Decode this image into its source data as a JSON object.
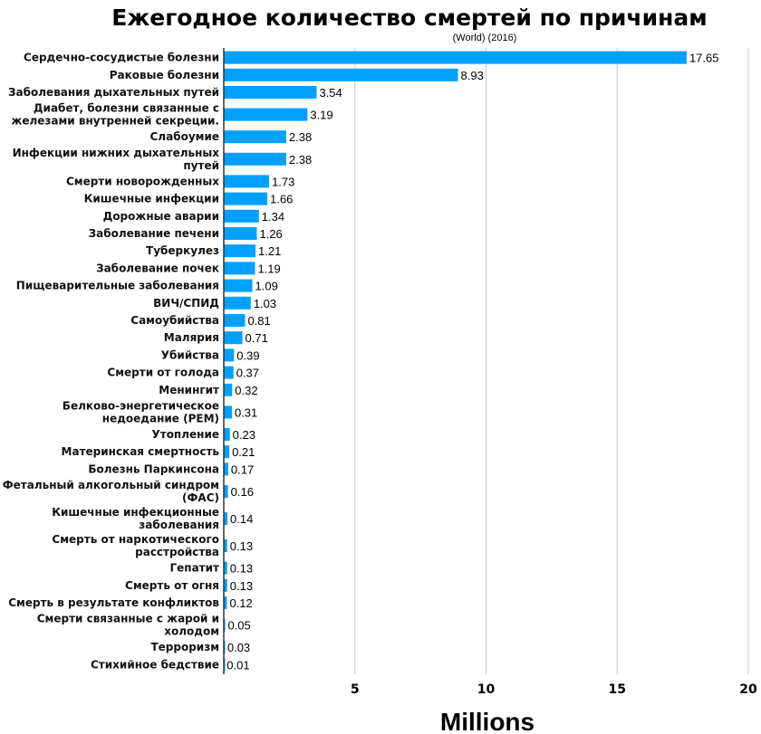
{
  "chart_data": {
    "type": "bar",
    "orientation": "horizontal",
    "title": "Ежегодное количество смертей по причинам",
    "subtitle": "(World) (2016)",
    "xlabel": "Millions",
    "ylabel": "",
    "xlim": [
      0,
      20
    ],
    "xticks": [
      5,
      10,
      15,
      20
    ],
    "grid": true,
    "bar_color": "#00a0ff",
    "categories": [
      "Сердечно-сосудистые болезни",
      "Раковые болезни",
      "Заболевания дыхательных путей",
      "Диабет, болезни связанные с\nжелезами внутренней секреции.",
      "Слабоумие",
      "Инфекции нижних дыхательных\nпутей",
      "Смерти новорожденных",
      "Кишечные инфекции",
      "Дорожные аварии",
      "Заболевание печени",
      "Туберкулез",
      "Заболевание почек",
      "Пищеварительные заболевания",
      "ВИЧ/СПИД",
      "Самоубийства",
      "Малярия",
      "Убийства",
      "Смерти от голода",
      "Менингит",
      "Белково-энергетическое\nнедоедание (PEM)",
      "Утопление",
      "Материнская смертность",
      "Болезнь Паркинсона",
      "Фетальный алкогольный синдром\n(ФАС)",
      "Кишечные инфекционные\nзаболевания",
      "Смерть от наркотического\nрасстройства",
      "Гепатит",
      "Смерть от огня",
      "Смерть в результате конфликтов",
      "Смерти связанные с жарой и\nхолодом",
      "Терроризм",
      "Стихийное бедствие"
    ],
    "values": [
      17.65,
      8.93,
      3.54,
      3.19,
      2.38,
      2.38,
      1.73,
      1.66,
      1.34,
      1.26,
      1.21,
      1.19,
      1.09,
      1.03,
      0.81,
      0.71,
      0.39,
      0.37,
      0.32,
      0.31,
      0.23,
      0.21,
      0.17,
      0.16,
      0.14,
      0.13,
      0.13,
      0.13,
      0.12,
      0.05,
      0.03,
      0.01
    ]
  }
}
